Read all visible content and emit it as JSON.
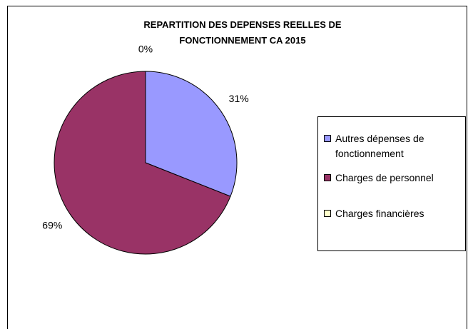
{
  "chart_data": {
    "type": "pie",
    "title": "REPARTITION DES DEPENSES REELLES DE FONCTIONNEMENT CA 2015",
    "categories": [
      "Autres dépenses de fonctionnement",
      "Charges de personnel",
      "Charges financières"
    ],
    "values": [
      31,
      69,
      0
    ],
    "value_labels": [
      "31%",
      "69%",
      "0%"
    ],
    "colors": [
      "#9999ff",
      "#993366",
      "#ffffcc"
    ],
    "legend": "right"
  }
}
